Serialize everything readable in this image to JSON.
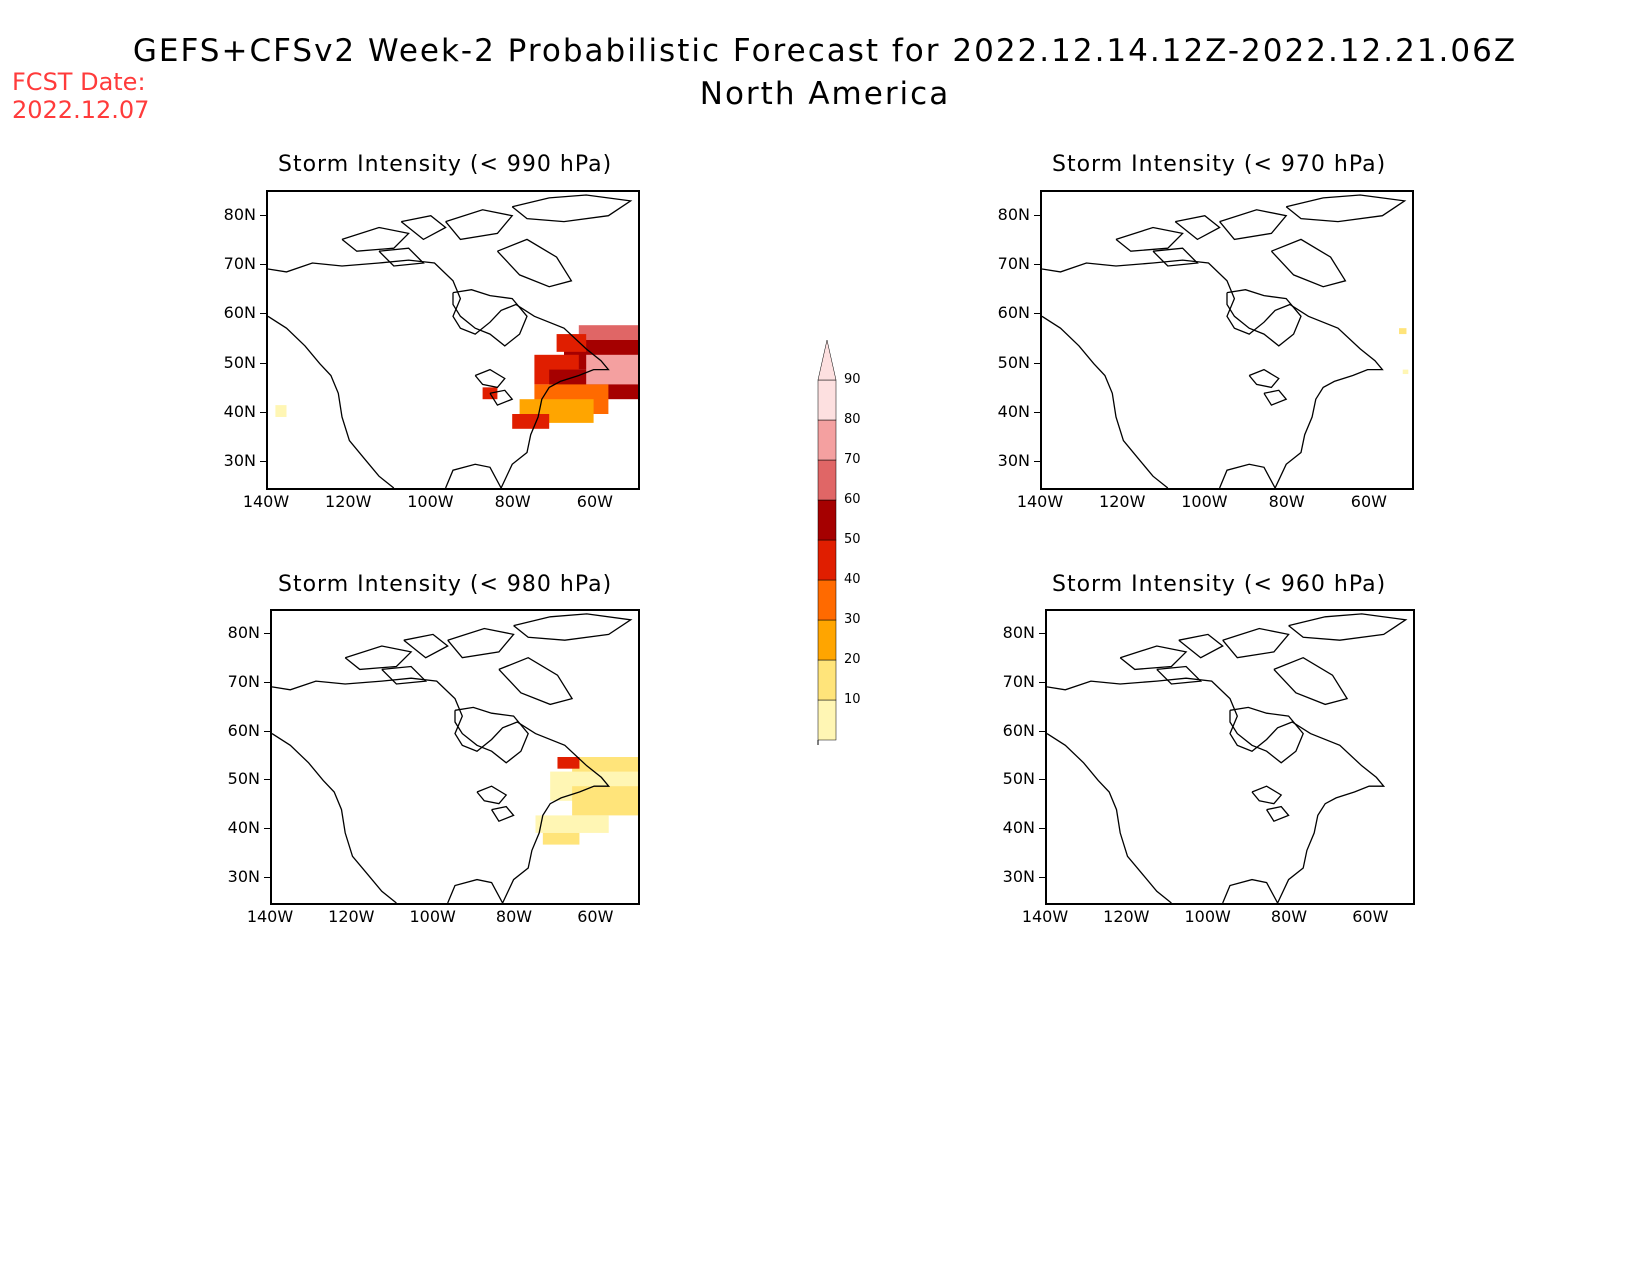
{
  "header": {
    "title": "GEFS+CFSv2 Week-2 Probabilistic Forecast for 2022.12.14.12Z-2022.12.21.06Z",
    "subtitle": "North America",
    "fcst_label": "FCST Date:",
    "fcst_date": "2022.12.07"
  },
  "panels": [
    {
      "id": "p990",
      "title": "Storm Intensity (< 990 hPa)"
    },
    {
      "id": "p970",
      "title": "Storm Intensity (< 970 hPa)"
    },
    {
      "id": "p980",
      "title": "Storm Intensity (< 980 hPa)"
    },
    {
      "id": "p960",
      "title": "Storm Intensity (< 960 hPa)"
    }
  ],
  "axes": {
    "lat_labels": [
      "80N",
      "70N",
      "60N",
      "50N",
      "40N",
      "30N"
    ],
    "lon_labels": [
      "140W",
      "120W",
      "100W",
      "80W",
      "60W"
    ]
  },
  "colorbar": {
    "levels": [
      "10",
      "20",
      "30",
      "40",
      "50",
      "60",
      "70",
      "80",
      "90"
    ],
    "colors": [
      "#fff6b4",
      "#ffe47a",
      "#ffa500",
      "#ff6a00",
      "#e01e00",
      "#a50000",
      "#e06666",
      "#f4a0a0",
      "#fde0e0"
    ]
  }
}
